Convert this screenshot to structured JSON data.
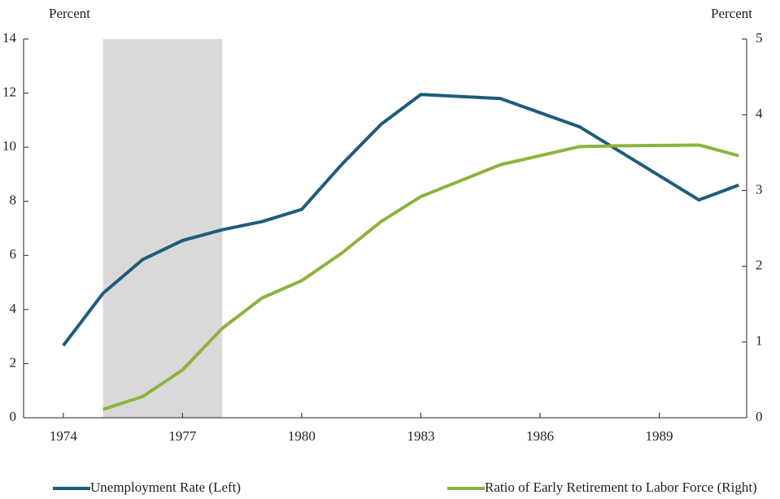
{
  "chart_data": {
    "type": "line",
    "y_label": "Percent",
    "y2_label": "Percent",
    "shaded_x": [
      1975,
      1978
    ],
    "shade_color": "#d9d9d9",
    "xlim": [
      1973,
      1991.2
    ],
    "xticks": [
      1974,
      1977,
      1980,
      1983,
      1986,
      1989
    ],
    "ylim": [
      0,
      14
    ],
    "yticks": [
      0,
      2,
      4,
      6,
      8,
      10,
      12,
      14
    ],
    "y2lim": [
      0,
      5
    ],
    "y2ticks": [
      0,
      1,
      2,
      3,
      4,
      5
    ],
    "legend": "bottom",
    "series": [
      {
        "name": "Unemployment Rate (Left)",
        "color": "#1f5c7a",
        "x": [
          1974,
          1975,
          1976,
          1977,
          1978,
          1979,
          1980,
          1981,
          1982,
          1983,
          1985,
          1987,
          1990,
          1991
        ],
        "values": [
          2.67,
          4.6,
          5.85,
          6.55,
          6.95,
          7.25,
          7.7,
          9.35,
          10.85,
          11.95,
          11.8,
          10.75,
          8.05,
          8.6
        ]
      },
      {
        "name": "Ratio of Early Retirement to Labor Force (Right)",
        "color": "#8db33f",
        "axis": "y2",
        "x": [
          1975,
          1976,
          1977,
          1978,
          1979,
          1980,
          1981,
          1982,
          1983,
          1985,
          1987,
          1988,
          1990,
          1991
        ],
        "values": [
          0.11,
          0.28,
          0.63,
          1.18,
          1.58,
          1.81,
          2.17,
          2.59,
          2.92,
          3.34,
          3.58,
          3.59,
          3.6,
          3.46
        ]
      }
    ]
  }
}
